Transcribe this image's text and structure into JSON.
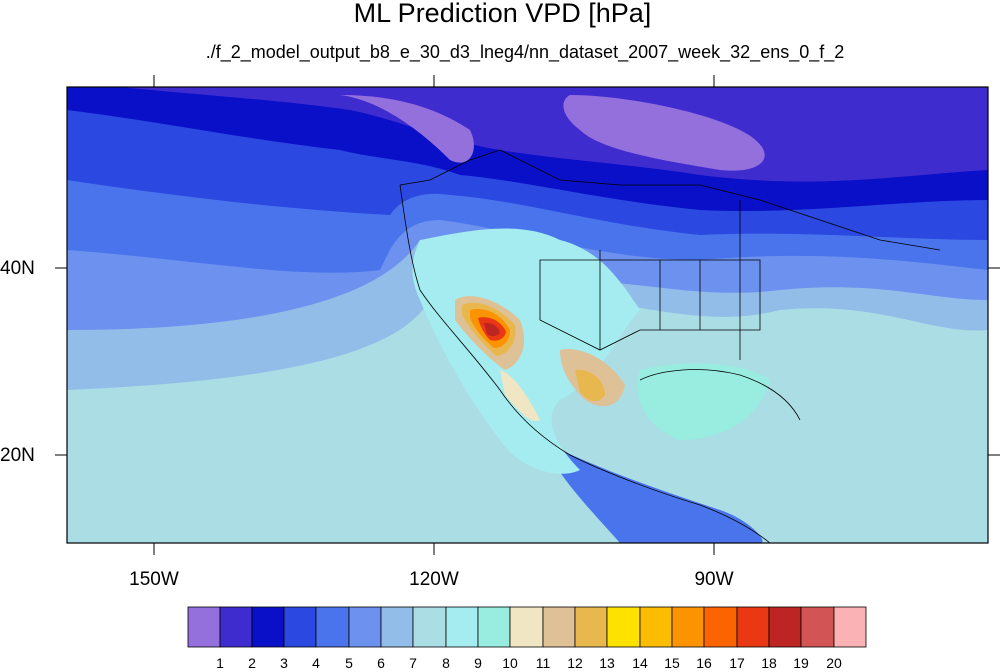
{
  "map": {
    "title": "ML Prediction VPD [hPa]",
    "subtitle": "./f_2_model_output_b8_e_30_d3_lneg4/nn_dataset_2007_week_32_ens_0_f_2",
    "lat_labels": [
      "40N",
      "20N"
    ],
    "lon_labels": [
      "150W",
      "120W",
      "90W"
    ],
    "region": "North America, Mexico and Eastern Pacific",
    "variable": "VPD",
    "units": "hPa"
  },
  "colorbar": {
    "labels": [
      "1",
      "2",
      "3",
      "4",
      "5",
      "6",
      "7",
      "8",
      "9",
      "10",
      "11",
      "12",
      "13",
      "14",
      "15",
      "16",
      "17",
      "18",
      "19",
      "20"
    ],
    "colors": [
      "#9370db",
      "#3f2ccf",
      "#0a10c8",
      "#2b48e0",
      "#4a74ec",
      "#6d91ee",
      "#92bde8",
      "#abdde5",
      "#a4ecf0",
      "#98ede0",
      "#f1e6c3",
      "#dec197",
      "#e8b74e",
      "#fde200",
      "#fcbd00",
      "#fc9300",
      "#fb6400",
      "#ea3714",
      "#bd2424",
      "#d25454",
      "#fbb2b4"
    ]
  }
}
